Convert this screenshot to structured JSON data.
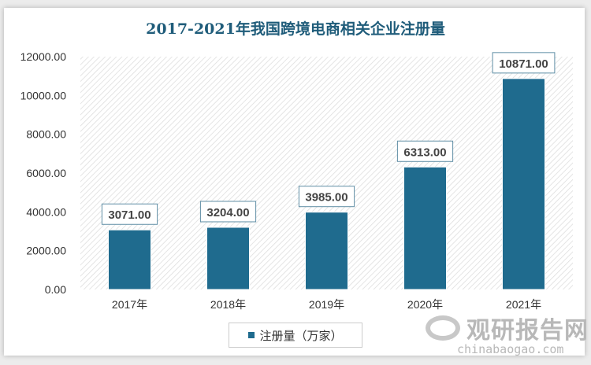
{
  "chart_data": {
    "type": "bar",
    "title": "2017-2021年我国跨境电商相关企业注册量",
    "categories": [
      "2017年",
      "2018年",
      "2019年",
      "2020年",
      "2021年"
    ],
    "series": [
      {
        "name": "注册量（万家）",
        "values": [
          3071,
          3204,
          3985,
          6313,
          10871
        ]
      }
    ],
    "data_labels": [
      "3071.00",
      "3204.00",
      "3985.00",
      "6313.00",
      "10871.00"
    ],
    "yticks": [
      "0.00",
      "2000.00",
      "4000.00",
      "6000.00",
      "8000.00",
      "10000.00",
      "12000.00"
    ],
    "ylim": [
      0,
      12000
    ],
    "grid": false,
    "legend_placement": "bottom",
    "colors": {
      "bar": "#1f6b8e",
      "title": "#1f5c7a"
    }
  },
  "watermark": {
    "cn": "观研报告网",
    "en": "chinabaogao.com"
  }
}
